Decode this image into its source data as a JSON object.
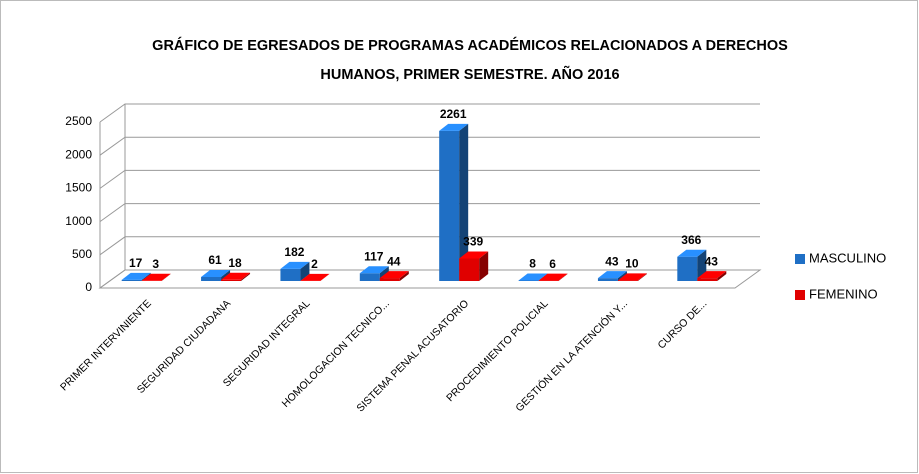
{
  "chart_data": {
    "type": "bar3d",
    "title": [
      "GRÁFICO DE EGRESADOS DE PROGRAMAS ACADÉMICOS RELACIONADOS A DERECHOS",
      "HUMANOS, PRIMER SEMESTRE. AÑO 2016"
    ],
    "categories": [
      "PRIMER INTERVINIENTE",
      "SEGURIDAD CIUDADANA",
      "SEGURIDAD INTEGRAL",
      "HOMOLOGACION TECNICO...",
      "SISTEMA PENAL ACUSATORIO",
      "PROCEDIMIENTO POLICIAL",
      "GESTIÓN EN LA ATENCIÓN Y...",
      "CURSO DE..."
    ],
    "series": [
      {
        "name": "MASCULINO",
        "color": "#1f6fc5",
        "values": [
          17,
          61,
          182,
          117,
          2261,
          8,
          43,
          366
        ]
      },
      {
        "name": "FEMENINO",
        "color": "#e00000",
        "values": [
          3,
          18,
          2,
          44,
          339,
          6,
          10,
          43
        ]
      }
    ],
    "ylim": [
      0,
      2500
    ],
    "yticks": [
      0,
      500,
      1000,
      1500,
      2000,
      2500
    ],
    "grid": true,
    "legend": "right"
  }
}
